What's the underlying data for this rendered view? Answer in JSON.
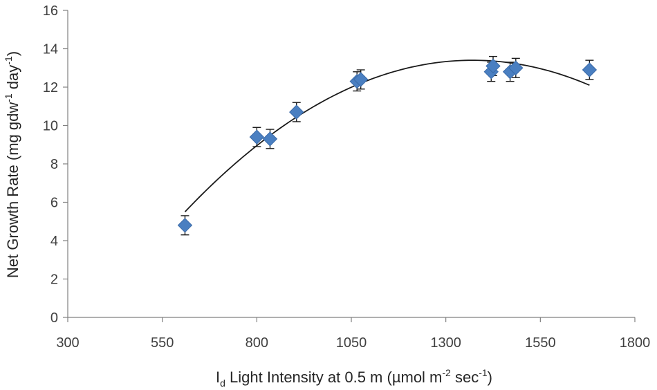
{
  "chart_data": {
    "type": "scatter",
    "title": "",
    "xlabel": {
      "main": "I",
      "sub": "d",
      "text": " Light Intensity at 0.5 m (µmol m",
      "sup1": "-2",
      "mid": " sec",
      "sup2": "-1",
      "end": ")"
    },
    "ylabel": {
      "text": "Net Growth Rate (mg gdw",
      "sup1": "-1",
      "mid": " day",
      "sup2": "-1",
      "end": ")"
    },
    "xlim": [
      300,
      1800
    ],
    "ylim": [
      0,
      16
    ],
    "xticks": [
      300,
      550,
      800,
      1050,
      1300,
      1550,
      1800
    ],
    "yticks": [
      0,
      2,
      4,
      6,
      8,
      10,
      12,
      14,
      16
    ],
    "grid": false,
    "legend": "none",
    "point_color": "#4a7fc1",
    "series": [
      {
        "marker": "diamond",
        "points": [
          {
            "x": 610,
            "y": 4.8,
            "err": 0.5
          },
          {
            "x": 800,
            "y": 9.4,
            "err": 0.5
          },
          {
            "x": 835,
            "y": 9.3,
            "err": 0.5
          },
          {
            "x": 905,
            "y": 10.7,
            "err": 0.5
          },
          {
            "x": 1065,
            "y": 12.3,
            "err": 0.5
          },
          {
            "x": 1075,
            "y": 12.4,
            "err": 0.5
          },
          {
            "x": 1420,
            "y": 12.8,
            "err": 0.5
          },
          {
            "x": 1425,
            "y": 13.1,
            "err": 0.5
          },
          {
            "x": 1470,
            "y": 12.8,
            "err": 0.5
          },
          {
            "x": 1485,
            "y": 13.0,
            "err": 0.5
          },
          {
            "x": 1680,
            "y": 12.9,
            "err": 0.5
          }
        ]
      }
    ],
    "trendline": {
      "type": "polynomial",
      "x_range": [
        610,
        1680
      ],
      "points": [
        {
          "x": 610,
          "y": 5.5
        },
        {
          "x": 1375,
          "y": 13.4
        },
        {
          "x": 1680,
          "y": 12.1
        }
      ]
    }
  }
}
